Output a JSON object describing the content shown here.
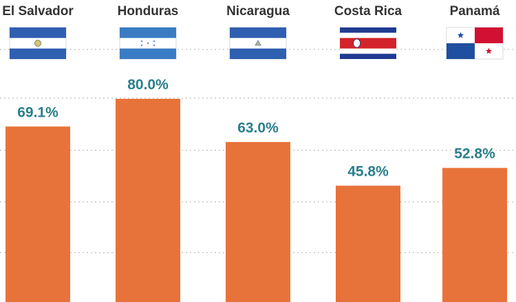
{
  "chart_data": {
    "type": "bar",
    "categories": [
      "El Salvador",
      "Honduras",
      "Nicaragua",
      "Costa Rica",
      "Panamá"
    ],
    "values": [
      69.1,
      80.0,
      63.0,
      45.8,
      52.8
    ],
    "value_labels": [
      "69.1%",
      "80.0%",
      "63.0%",
      "45.8%",
      "52.8%"
    ],
    "flags": [
      "el-salvador-flag",
      "honduras-flag",
      "nicaragua-flag",
      "costa-rica-flag",
      "panama-flag"
    ],
    "unit": "%",
    "grid": true,
    "colors": {
      "bar": "#e8733a",
      "value_label": "#2a7f8c",
      "country_label": "#333333",
      "grid": "#c9c9c9",
      "background": "#ffffff"
    }
  }
}
